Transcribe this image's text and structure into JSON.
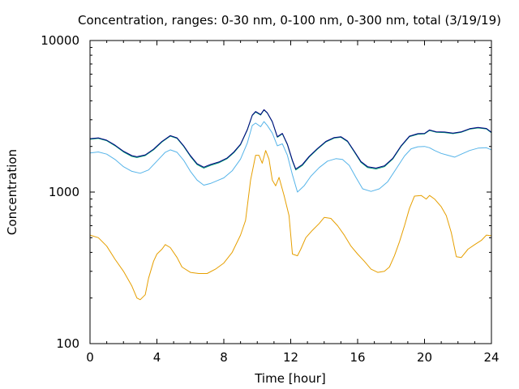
{
  "chart_data": {
    "type": "line",
    "title": "Concentration, ranges: 0-30 nm, 0-100 nm, 0-300 nm, total (3/19/19)",
    "xlabel": "Time [hour]",
    "ylabel": "Concentration",
    "xlim": [
      0,
      24
    ],
    "ylim": [
      100,
      10000
    ],
    "yscale": "log",
    "grid": false,
    "legend": "none",
    "x_ticks": [
      0,
      4,
      8,
      12,
      16,
      20,
      24
    ],
    "x_tick_labels": [
      "0",
      "4",
      "8",
      "12",
      "16",
      "20",
      "24"
    ],
    "y_ticks": [
      100,
      1000,
      10000
    ],
    "y_tick_labels": [
      "100",
      "1000",
      "10000"
    ],
    "series": [
      {
        "color": "#e69f00",
        "points": [
          [
            0,
            520
          ],
          [
            0.5,
            500
          ],
          [
            1,
            440
          ],
          [
            1.5,
            360
          ],
          [
            2,
            300
          ],
          [
            2.5,
            240
          ],
          [
            2.8,
            200
          ],
          [
            3,
            195
          ],
          [
            3.3,
            210
          ],
          [
            3.5,
            270
          ],
          [
            3.8,
            350
          ],
          [
            4,
            390
          ],
          [
            4.3,
            420
          ],
          [
            4.5,
            450
          ],
          [
            4.8,
            430
          ],
          [
            5.2,
            370
          ],
          [
            5.5,
            320
          ],
          [
            6,
            295
          ],
          [
            6.5,
            290
          ],
          [
            7,
            290
          ],
          [
            7.5,
            310
          ],
          [
            8,
            340
          ],
          [
            8.5,
            400
          ],
          [
            9,
            520
          ],
          [
            9.3,
            650
          ],
          [
            9.6,
            1200
          ],
          [
            9.9,
            1750
          ],
          [
            10.1,
            1750
          ],
          [
            10.3,
            1550
          ],
          [
            10.5,
            1880
          ],
          [
            10.7,
            1650
          ],
          [
            10.9,
            1200
          ],
          [
            11.1,
            1100
          ],
          [
            11.3,
            1250
          ],
          [
            11.6,
            950
          ],
          [
            11.9,
            700
          ],
          [
            12.1,
            390
          ],
          [
            12.4,
            380
          ],
          [
            12.6,
            420
          ],
          [
            12.9,
            500
          ],
          [
            13.3,
            560
          ],
          [
            13.7,
            620
          ],
          [
            14,
            680
          ],
          [
            14.4,
            670
          ],
          [
            14.8,
            600
          ],
          [
            15.2,
            520
          ],
          [
            15.6,
            440
          ],
          [
            16,
            390
          ],
          [
            16.4,
            350
          ],
          [
            16.8,
            310
          ],
          [
            17.2,
            295
          ],
          [
            17.6,
            300
          ],
          [
            17.9,
            320
          ],
          [
            18.2,
            380
          ],
          [
            18.5,
            470
          ],
          [
            18.8,
            600
          ],
          [
            19.1,
            780
          ],
          [
            19.4,
            940
          ],
          [
            19.8,
            950
          ],
          [
            20.1,
            900
          ],
          [
            20.3,
            950
          ],
          [
            20.6,
            900
          ],
          [
            21,
            800
          ],
          [
            21.3,
            700
          ],
          [
            21.6,
            540
          ],
          [
            21.9,
            375
          ],
          [
            22.2,
            370
          ],
          [
            22.6,
            420
          ],
          [
            23,
            450
          ],
          [
            23.4,
            480
          ],
          [
            23.7,
            520
          ],
          [
            24,
            515
          ]
        ]
      },
      {
        "color": "#56b4e9",
        "points": [
          [
            0,
            1810
          ],
          [
            0.5,
            1840
          ],
          [
            1,
            1780
          ],
          [
            1.5,
            1640
          ],
          [
            2,
            1470
          ],
          [
            2.5,
            1370
          ],
          [
            3,
            1330
          ],
          [
            3.5,
            1400
          ],
          [
            4,
            1600
          ],
          [
            4.5,
            1830
          ],
          [
            4.8,
            1900
          ],
          [
            5.2,
            1830
          ],
          [
            5.6,
            1620
          ],
          [
            6,
            1370
          ],
          [
            6.4,
            1200
          ],
          [
            6.8,
            1110
          ],
          [
            7.2,
            1140
          ],
          [
            7.6,
            1190
          ],
          [
            8,
            1240
          ],
          [
            8.5,
            1380
          ],
          [
            9,
            1650
          ],
          [
            9.4,
            2100
          ],
          [
            9.7,
            2750
          ],
          [
            9.9,
            2850
          ],
          [
            10.2,
            2700
          ],
          [
            10.4,
            2920
          ],
          [
            10.6,
            2750
          ],
          [
            10.9,
            2450
          ],
          [
            11.2,
            2020
          ],
          [
            11.5,
            2080
          ],
          [
            11.8,
            1750
          ],
          [
            12.1,
            1300
          ],
          [
            12.4,
            1000
          ],
          [
            12.8,
            1100
          ],
          [
            13.2,
            1270
          ],
          [
            13.7,
            1450
          ],
          [
            14.2,
            1600
          ],
          [
            14.7,
            1660
          ],
          [
            15.1,
            1640
          ],
          [
            15.5,
            1500
          ],
          [
            15.9,
            1250
          ],
          [
            16.3,
            1050
          ],
          [
            16.8,
            1010
          ],
          [
            17.3,
            1050
          ],
          [
            17.8,
            1170
          ],
          [
            18.3,
            1420
          ],
          [
            18.8,
            1730
          ],
          [
            19.2,
            1930
          ],
          [
            19.6,
            1990
          ],
          [
            20,
            2000
          ],
          [
            20.3,
            1960
          ],
          [
            20.6,
            1880
          ],
          [
            21,
            1800
          ],
          [
            21.4,
            1750
          ],
          [
            21.8,
            1700
          ],
          [
            22.2,
            1780
          ],
          [
            22.7,
            1880
          ],
          [
            23.2,
            1950
          ],
          [
            23.7,
            1960
          ],
          [
            24,
            1900
          ]
        ]
      },
      {
        "color": "#009e73",
        "points": [
          [
            0,
            2230
          ],
          [
            0.5,
            2260
          ],
          [
            1,
            2180
          ],
          [
            1.5,
            2020
          ],
          [
            2,
            1840
          ],
          [
            2.5,
            1720
          ],
          [
            2.8,
            1690
          ],
          [
            3.3,
            1740
          ],
          [
            3.8,
            1900
          ],
          [
            4.3,
            2140
          ],
          [
            4.8,
            2340
          ],
          [
            5.2,
            2260
          ],
          [
            5.6,
            2000
          ],
          [
            6,
            1720
          ],
          [
            6.4,
            1520
          ],
          [
            6.8,
            1440
          ],
          [
            7.2,
            1500
          ],
          [
            7.7,
            1560
          ],
          [
            8.2,
            1660
          ],
          [
            8.6,
            1820
          ],
          [
            9,
            2050
          ],
          [
            9.4,
            2560
          ],
          [
            9.7,
            3200
          ],
          [
            9.9,
            3370
          ],
          [
            10.2,
            3220
          ],
          [
            10.4,
            3480
          ],
          [
            10.6,
            3320
          ],
          [
            10.9,
            2900
          ],
          [
            11.2,
            2300
          ],
          [
            11.5,
            2420
          ],
          [
            11.8,
            2050
          ],
          [
            12.1,
            1600
          ],
          [
            12.3,
            1400
          ],
          [
            12.7,
            1500
          ],
          [
            13.1,
            1700
          ],
          [
            13.6,
            1920
          ],
          [
            14.1,
            2140
          ],
          [
            14.6,
            2270
          ],
          [
            15,
            2300
          ],
          [
            15.4,
            2150
          ],
          [
            15.8,
            1840
          ],
          [
            16.2,
            1570
          ],
          [
            16.6,
            1450
          ],
          [
            17.1,
            1420
          ],
          [
            17.6,
            1470
          ],
          [
            18.1,
            1650
          ],
          [
            18.6,
            2000
          ],
          [
            19.1,
            2320
          ],
          [
            19.6,
            2410
          ],
          [
            20,
            2420
          ],
          [
            20.3,
            2550
          ],
          [
            20.7,
            2480
          ],
          [
            21.2,
            2470
          ],
          [
            21.7,
            2430
          ],
          [
            22.2,
            2480
          ],
          [
            22.7,
            2600
          ],
          [
            23.2,
            2650
          ],
          [
            23.7,
            2610
          ],
          [
            24,
            2460
          ]
        ]
      },
      {
        "color": "#000080",
        "points": [
          [
            0,
            2250
          ],
          [
            0.5,
            2280
          ],
          [
            1,
            2200
          ],
          [
            1.5,
            2040
          ],
          [
            2,
            1860
          ],
          [
            2.5,
            1740
          ],
          [
            2.8,
            1710
          ],
          [
            3.3,
            1760
          ],
          [
            3.8,
            1920
          ],
          [
            4.3,
            2160
          ],
          [
            4.8,
            2360
          ],
          [
            5.2,
            2280
          ],
          [
            5.6,
            2020
          ],
          [
            6,
            1740
          ],
          [
            6.4,
            1540
          ],
          [
            6.8,
            1460
          ],
          [
            7.2,
            1520
          ],
          [
            7.7,
            1580
          ],
          [
            8.2,
            1680
          ],
          [
            8.6,
            1840
          ],
          [
            9,
            2070
          ],
          [
            9.4,
            2580
          ],
          [
            9.7,
            3220
          ],
          [
            9.9,
            3400
          ],
          [
            10.2,
            3250
          ],
          [
            10.4,
            3500
          ],
          [
            10.6,
            3340
          ],
          [
            10.9,
            2920
          ],
          [
            11.2,
            2320
          ],
          [
            11.5,
            2440
          ],
          [
            11.8,
            2070
          ],
          [
            12.1,
            1620
          ],
          [
            12.3,
            1420
          ],
          [
            12.7,
            1520
          ],
          [
            13.1,
            1720
          ],
          [
            13.6,
            1940
          ],
          [
            14.1,
            2160
          ],
          [
            14.6,
            2290
          ],
          [
            15,
            2320
          ],
          [
            15.4,
            2170
          ],
          [
            15.8,
            1860
          ],
          [
            16.2,
            1590
          ],
          [
            16.6,
            1470
          ],
          [
            17.1,
            1440
          ],
          [
            17.6,
            1490
          ],
          [
            18.1,
            1670
          ],
          [
            18.6,
            2020
          ],
          [
            19.1,
            2340
          ],
          [
            19.6,
            2430
          ],
          [
            20,
            2440
          ],
          [
            20.3,
            2570
          ],
          [
            20.7,
            2500
          ],
          [
            21.2,
            2490
          ],
          [
            21.7,
            2450
          ],
          [
            22.2,
            2500
          ],
          [
            22.7,
            2620
          ],
          [
            23.2,
            2670
          ],
          [
            23.7,
            2630
          ],
          [
            24,
            2480
          ]
        ]
      }
    ]
  }
}
